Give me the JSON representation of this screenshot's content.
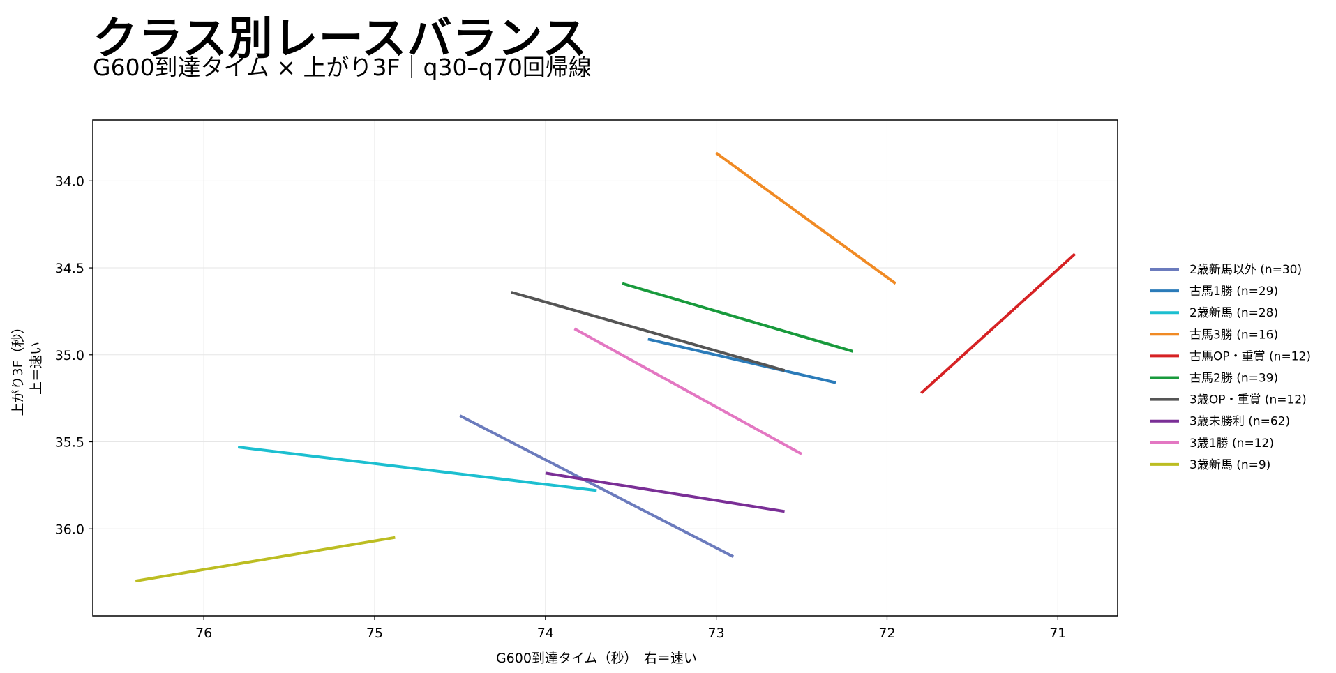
{
  "title": "クラス別レースバランス",
  "subtitle": "G600到達タイム × 上がり3F｜q30–q70回帰線",
  "chart_data": {
    "type": "line",
    "xlabel": "G600到達タイム（秒）　右＝速い",
    "ylabel_line1": "上がり3F（秒）",
    "ylabel_line2": "上＝速い",
    "xlim": [
      76.65,
      70.65
    ],
    "ylim": [
      33.65,
      36.5
    ],
    "x_inverted": true,
    "y_inverted": true,
    "xticks": [
      76,
      75,
      74,
      73,
      72,
      71
    ],
    "xtick_labels": [
      "76",
      "75",
      "74",
      "73",
      "72",
      "71"
    ],
    "yticks": [
      34.0,
      34.5,
      35.0,
      35.5,
      36.0
    ],
    "ytick_labels": [
      "34.0",
      "34.5",
      "35.0",
      "35.5",
      "36.0"
    ],
    "grid": true,
    "legend_placement": "right",
    "series": [
      {
        "name": "2歳新馬以外 (n=30)",
        "color": "#6b7bbd",
        "x": [
          74.5,
          72.9
        ],
        "y": [
          35.35,
          36.16
        ]
      },
      {
        "name": "古馬1勝 (n=29)",
        "color": "#2b7bb9",
        "x": [
          73.4,
          72.3
        ],
        "y": [
          34.91,
          35.16
        ]
      },
      {
        "name": "2歳新馬 (n=28)",
        "color": "#1cbfd0",
        "x": [
          75.8,
          73.7
        ],
        "y": [
          35.53,
          35.78
        ]
      },
      {
        "name": "古馬3勝 (n=16)",
        "color": "#f08a24",
        "x": [
          73.0,
          71.95
        ],
        "y": [
          33.84,
          34.59
        ]
      },
      {
        "name": "古馬OP・重賞 (n=12)",
        "color": "#d62224",
        "x": [
          71.8,
          70.9
        ],
        "y": [
          35.22,
          34.42
        ]
      },
      {
        "name": "古馬2勝 (n=39)",
        "color": "#189a3c",
        "x": [
          73.55,
          72.2
        ],
        "y": [
          34.59,
          34.98
        ]
      },
      {
        "name": "3歳OP・重賞 (n=12)",
        "color": "#555555",
        "x": [
          74.2,
          72.6
        ],
        "y": [
          34.64,
          35.09
        ]
      },
      {
        "name": "3歳未勝利 (n=62)",
        "color": "#7a2f96",
        "x": [
          74.0,
          72.6
        ],
        "y": [
          35.68,
          35.9
        ]
      },
      {
        "name": "3歳1勝 (n=12)",
        "color": "#e377c2",
        "x": [
          73.83,
          72.5
        ],
        "y": [
          34.85,
          35.57
        ]
      },
      {
        "name": "3歳新馬 (n=9)",
        "color": "#bcbd22",
        "x": [
          76.4,
          74.88
        ],
        "y": [
          36.3,
          36.05
        ]
      }
    ]
  }
}
